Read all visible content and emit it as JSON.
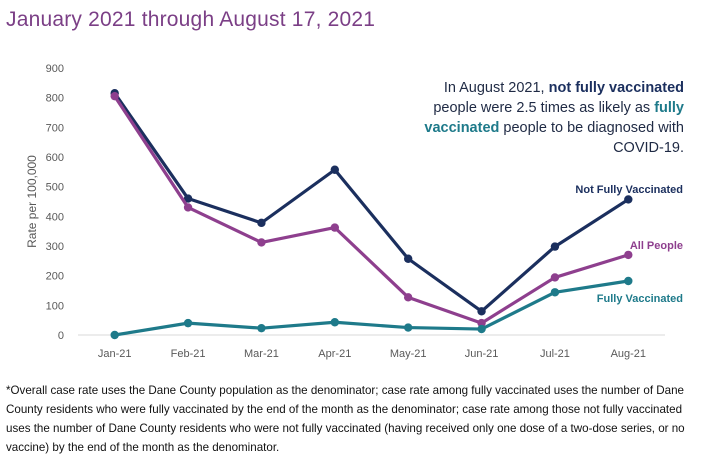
{
  "header": {
    "title": "January 2021 through August 17, 2021"
  },
  "callout": {
    "part1": "In August 2021, ",
    "bold1": "not fully vaccinated",
    "part2": " people were 2.5 times as likely as ",
    "bold2": "fully vaccinated",
    "part3": " people to be diagnosed with COVID-19."
  },
  "footnote": "*Overall case rate uses the Dane County population as the denominator; case rate among fully vaccinated uses the number of Dane County residents who were fully vaccinated by the end of the month as the denominator; case rate among those not fully vaccinated uses the number of Dane County residents who were not fully vaccinated (having received only one dose of a two-dose series, or no vaccine) by the end of the month as the denominator.",
  "chart_data": {
    "type": "line",
    "title": "January 2021 through August 17, 2021",
    "xlabel": "",
    "ylabel": "Rate per 100,000",
    "categories": [
      "Jan-21",
      "Feb-21",
      "Mar-21",
      "Apr-21",
      "May-21",
      "Jun-21",
      "Jul-21",
      "Aug-21"
    ],
    "ylim": [
      0,
      900
    ],
    "yticks": [
      0,
      100,
      200,
      300,
      400,
      500,
      600,
      700,
      800,
      900
    ],
    "grid": false,
    "legend": "labels at line ends",
    "series": [
      {
        "name": "Not Fully Vaccinated",
        "color": "#1b2f5e",
        "values": [
          815,
          460,
          378,
          557,
          257,
          80,
          298,
          457
        ]
      },
      {
        "name": "All People",
        "color": "#8e3f8e",
        "values": [
          805,
          430,
          312,
          362,
          127,
          40,
          194,
          270
        ]
      },
      {
        "name": "Fully Vaccinated",
        "color": "#1e7a8a",
        "values": [
          0,
          40,
          23,
          43,
          25,
          20,
          144,
          182
        ]
      }
    ]
  }
}
